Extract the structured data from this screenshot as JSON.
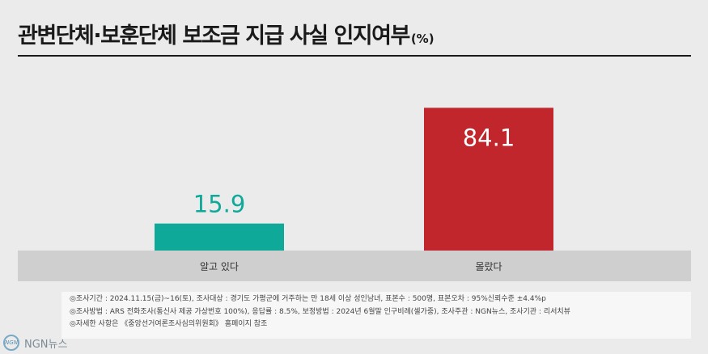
{
  "header": {
    "title": "관변단체·보훈단체 보조금 지급 사실 인지여부",
    "unit": "(%)"
  },
  "chart_data": {
    "type": "bar",
    "categories": [
      "알고 있다",
      "몰랐다"
    ],
    "values": [
      15.9,
      84.1
    ],
    "value_labels": [
      "15.9",
      "84.1"
    ],
    "colors": [
      "#0fa99a",
      "#c1262d"
    ],
    "ylim": [
      0,
      100
    ],
    "grid": false
  },
  "notes": [
    "◎조사기간 : 2024.11.15(금)~16(토), 조사대상 : 경기도 가평군에 거주하는 만 18세 이상 성인남녀, 표본수 : 500명, 표본오차 : 95%신뢰수준 ±4.4%p",
    "◎조사방법 : ARS 전화조사(통신사 제공 가상번호 100%), 응답률 : 8.5%, 보정방법 : 2024년 6월말 인구비례(셀가중), 조사주관 : NGN뉴스, 조사기관 : 리서치뷰",
    "◎자세한 사항은 《중앙선거여론조사심의위원회》 홈페이지 참조"
  ],
  "footer": {
    "logo_text": "NGN뉴스"
  }
}
